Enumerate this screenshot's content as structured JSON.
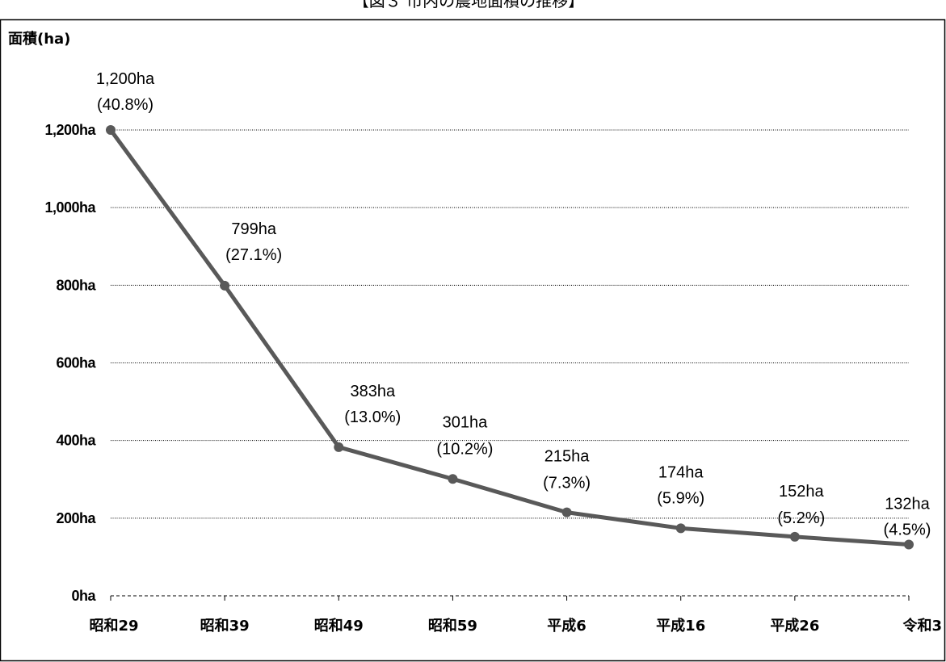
{
  "chart_data": {
    "type": "line",
    "title": "【図３ 市内の農地面積の推移】",
    "ylabel": "面積(ha)",
    "xlabel": "",
    "ylim": [
      0,
      1200
    ],
    "yticks": [
      "0ha",
      "200ha",
      "400ha",
      "600ha",
      "800ha",
      "1,000ha",
      "1,200ha"
    ],
    "ytick_values": [
      0,
      200,
      400,
      600,
      800,
      1000,
      1200
    ],
    "grid": true,
    "categories": [
      "昭和29",
      "昭和39",
      "昭和49",
      "昭和59",
      "平成6",
      "平成16",
      "平成26",
      "令和3"
    ],
    "series": [
      {
        "values": [
          1200,
          799,
          383,
          301,
          215,
          174,
          152,
          132
        ],
        "value_labels": [
          "1,200ha",
          "799ha",
          "383ha",
          "301ha",
          "215ha",
          "174ha",
          "152ha",
          "132ha"
        ],
        "share_labels": [
          "(40.8%)",
          "(27.1%)",
          "(13.0%)",
          "(10.2%)",
          "(7.3%)",
          "(5.9%)",
          "(5.2%)",
          "(4.5%)"
        ],
        "color": "#595959"
      }
    ]
  }
}
